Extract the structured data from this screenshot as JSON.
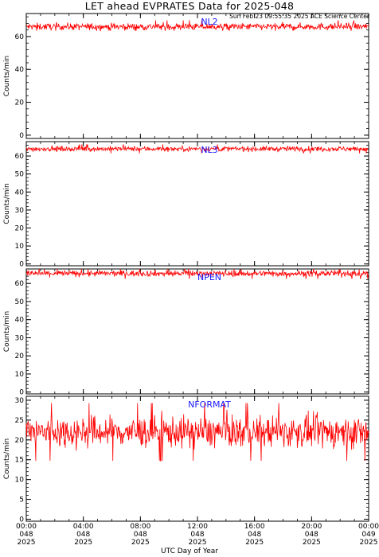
{
  "header": {
    "title": "LET ahead EVPRATES Data for 2025-048",
    "timestamp": "Sun Feb 23 09:55:35 2025 ACE Science Center"
  },
  "colors": {
    "series": "#ff0000",
    "panel_label": "#1a1aff",
    "axis": "#000000"
  },
  "chart_data": [
    {
      "type": "line",
      "series": [
        {
          "name": "NL2",
          "mean": 66,
          "spread": 1.5,
          "min": 63.5,
          "max": 70
        }
      ],
      "ylabel": "Counts/min",
      "ylim": [
        -2,
        74
      ],
      "yticks": [
        0,
        20,
        40,
        60
      ],
      "xlim": [
        0,
        24
      ],
      "grid": false
    },
    {
      "type": "line",
      "series": [
        {
          "name": "NL3",
          "mean": 64,
          "spread": 1.0,
          "min": 61.5,
          "max": 66.5
        }
      ],
      "ylabel": "Counts/min",
      "ylim": [
        -1,
        68
      ],
      "yticks": [
        0,
        10,
        20,
        30,
        40,
        50,
        60
      ],
      "xlim": [
        0,
        24
      ],
      "grid": false
    },
    {
      "type": "line",
      "series": [
        {
          "name": "NPEN",
          "mean": 65.5,
          "spread": 1.2,
          "min": 62.5,
          "max": 68
        }
      ],
      "ylabel": "Counts/min",
      "ylim": [
        -1,
        68
      ],
      "yticks": [
        0,
        10,
        20,
        30,
        40,
        50,
        60
      ],
      "xlim": [
        0,
        24
      ],
      "grid": false
    },
    {
      "type": "line",
      "series": [
        {
          "name": "NFORMAT",
          "mean": 22,
          "spread": 2.8,
          "min": 13,
          "max": 30.5
        }
      ],
      "ylabel": "Counts/min",
      "ylim": [
        -0.5,
        31
      ],
      "yticks": [
        0,
        5,
        10,
        15,
        20,
        25,
        30
      ],
      "xlim": [
        0,
        24
      ],
      "grid": false
    }
  ],
  "x_axis": {
    "label": "UTC Day of Year",
    "ticks": [
      {
        "hour": 0,
        "time": "00:00",
        "doy": "048",
        "year": "2025"
      },
      {
        "hour": 4,
        "time": "04:00",
        "doy": "048",
        "year": "2025"
      },
      {
        "hour": 8,
        "time": "08:00",
        "doy": "048",
        "year": "2025"
      },
      {
        "hour": 12,
        "time": "12:00",
        "doy": "048",
        "year": "2025"
      },
      {
        "hour": 16,
        "time": "16:00",
        "doy": "048",
        "year": "2025"
      },
      {
        "hour": 20,
        "time": "20:00",
        "doy": "048",
        "year": "2025"
      },
      {
        "hour": 24,
        "time": "00:00",
        "doy": "049",
        "year": "2025"
      }
    ]
  }
}
